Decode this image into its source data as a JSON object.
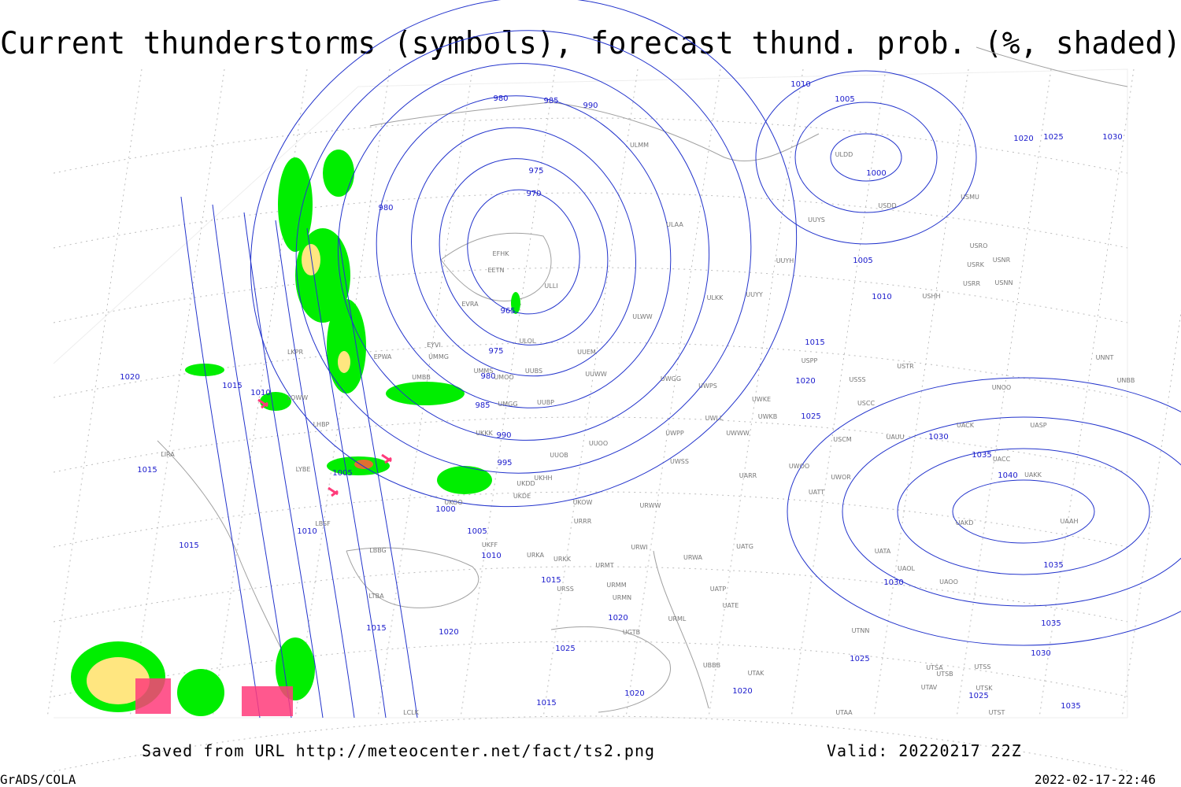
{
  "header": {
    "title": "Current thunderstorms (symbols), forecast thund. prob. (%, shaded)"
  },
  "map": {
    "contour_labels": [
      980,
      985,
      990,
      1010,
      1005,
      1000,
      1020,
      1025,
      1030,
      975,
      970,
      980,
      1005,
      1010,
      965,
      975,
      980,
      985,
      990,
      995,
      1015,
      1020,
      1025,
      1030,
      1035,
      1040,
      1035,
      1030,
      1025,
      1020,
      1020,
      1015,
      1010,
      1015,
      1005,
      1000,
      1005,
      1010,
      1010,
      1015,
      1015,
      1015,
      1020,
      1025,
      1020,
      1020,
      1015,
      1025,
      1035,
      1030,
      1035
    ],
    "station_labels": [
      "ULMM",
      "ULDD",
      "USDD",
      "USMU",
      "UUYS",
      "ULAA",
      "UUYH",
      "USRO",
      "USRK",
      "USNR",
      "USRR",
      "USNN",
      "USHH",
      "UUYY",
      "ULKK",
      "ULWW",
      "EFHK",
      "EETN",
      "ULLI",
      "EVRA",
      "ULOL",
      "UUEM",
      "EYVI",
      "UMMG",
      "EPWA",
      "LKPR",
      "UMMS",
      "UUBS",
      "UUWW",
      "UWGG",
      "UWPS",
      "USPP",
      "USTR",
      "USSS",
      "UNOO",
      "UNNT",
      "UNBB",
      "UMBB",
      "UMOO",
      "UMGG",
      "UUBP",
      "UWKE",
      "USCC",
      "UACK",
      "UASP",
      "UWKB",
      "UWLL",
      "UWWW",
      "USCM",
      "UAUU",
      "LOWW",
      "LHBP",
      "UKKK",
      "UUOO",
      "UWPP",
      "UWSS",
      "UACC",
      "UAKK",
      "UUOB",
      "UKHH",
      "UKDD",
      "UKDE",
      "URWW",
      "UWOO",
      "UWOR",
      "UATT",
      "UARR",
      "UAKD",
      "UAAH",
      "UKOW",
      "URRR",
      "LIRA",
      "LYBE",
      "LBSF",
      "UKOO",
      "UKFF",
      "URKA",
      "URKK",
      "URMT",
      "URWI",
      "URWA",
      "UATG",
      "UATA",
      "UAOL",
      "UAOO",
      "LBBG",
      "URSS",
      "URMM",
      "URMN",
      "UATP",
      "UATE",
      "URML",
      "LTBA",
      "UGTB",
      "UBBB",
      "UTAK",
      "UTNN",
      "UTSA",
      "UTSS",
      "UTSB",
      "UTSK",
      "UTAV",
      "UTAA",
      "UTST",
      "LCLK"
    ]
  },
  "footer": {
    "source": "Saved from URL http://meteocenter.net/fact/ts2.png",
    "valid": "Valid: 20220217 22Z",
    "software": "GrADS/COLA",
    "timestamp": "2022-02-17-22:46"
  }
}
